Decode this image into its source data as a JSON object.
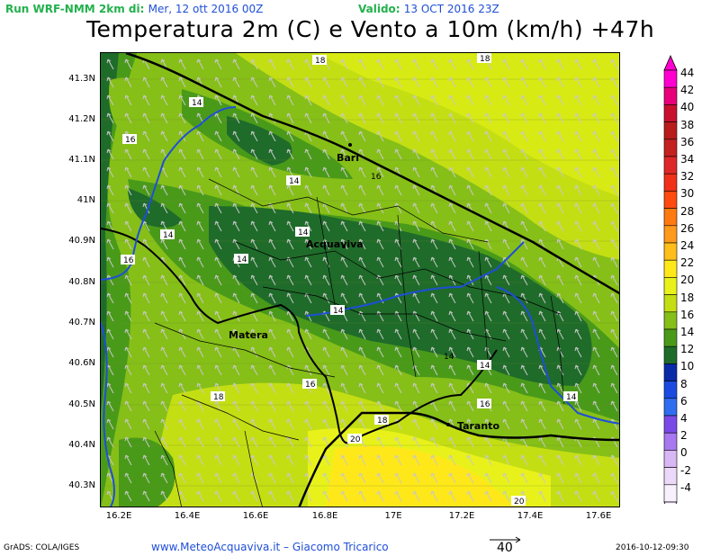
{
  "header": {
    "run_label": "Run WRF-NMM 2km di:",
    "run_date": "Mer, 12 ott 2016 00Z",
    "valid_label": "Valido:",
    "valid_date": "13 OCT 2016 23Z",
    "title": "Temperatura 2m (C) e Vento a 10m (km/h) +47h"
  },
  "axes": {
    "lat_ticks": [
      "41.3N",
      "41.2N",
      "41.1N",
      "41N",
      "40.9N",
      "40.8N",
      "40.7N",
      "40.6N",
      "40.5N",
      "40.4N",
      "40.3N"
    ],
    "lon_ticks": [
      "16.2E",
      "16.4E",
      "16.6E",
      "16.8E",
      "17E",
      "17.2E",
      "17.4E",
      "17.6E"
    ]
  },
  "cities": {
    "bari": "Bari",
    "acquaviva": "Acquaviva",
    "matera": "Matera",
    "taranto": "Taranto"
  },
  "contour_labels": [
    "18",
    "18",
    "14",
    "16",
    "14",
    "14",
    "14",
    "16",
    "14",
    "14",
    "14",
    "16",
    "18",
    "16",
    "14",
    "14",
    "16",
    "18",
    "20",
    "20"
  ],
  "legend": {
    "values": [
      "44",
      "42",
      "40",
      "38",
      "36",
      "34",
      "32",
      "30",
      "28",
      "26",
      "24",
      "22",
      "20",
      "18",
      "16",
      "14",
      "12",
      "10",
      "8",
      "6",
      "4",
      "2",
      "0",
      "-2",
      "-4"
    ],
    "colors": [
      "#ff00d0",
      "#e8007a",
      "#c8102e",
      "#b81c1c",
      "#c42121",
      "#de2828",
      "#f03018",
      "#ff4a10",
      "#ff7a10",
      "#ff9a1a",
      "#ffbe1a",
      "#ffe81a",
      "#e8f21a",
      "#c4de14",
      "#86bf18",
      "#4a9a1a",
      "#1f6b2a",
      "#0a2aa8",
      "#1a4ae0",
      "#2f6ef0",
      "#7a4ae8",
      "#a878f0",
      "#d8b8f4",
      "#ecd8f8",
      "#f8f0fc"
    ]
  },
  "vector_ref": "40",
  "footer": {
    "left": "GrADS: COLA/IGES",
    "center": "www.MeteoAcquaviva.it  –  Giacomo Tricarico",
    "right": "2016-10-12-09:30"
  }
}
